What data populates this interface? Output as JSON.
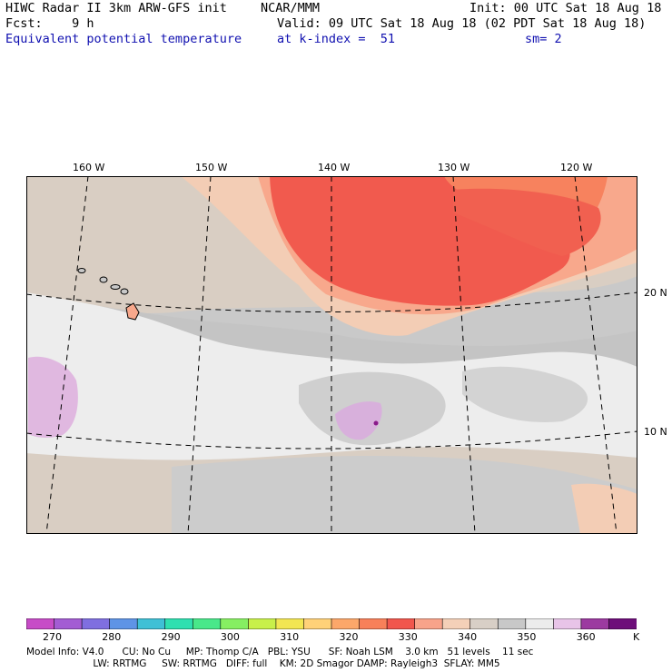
{
  "header": {
    "line1_left": "HIWC Radar II 3km ARW-GFS init",
    "line1_mid": "NCAR/MMM",
    "line1_right": "Init: 00 UTC Sat 18 Aug 18",
    "line2_left": "Fcst:    9 h",
    "line2_right": "Valid: 09 UTC Sat 18 Aug 18 (02 PDT Sat 18 Aug 18)",
    "line3_left": "Equivalent potential temperature",
    "line3_mid": "at k-index =  51",
    "line3_right": "sm= 2"
  },
  "map": {
    "lon_labels": [
      "160 W",
      "150 W",
      "140 W",
      "130 W",
      "120 W"
    ],
    "lat_labels": [
      "20 N",
      "10 N"
    ]
  },
  "colorbar": {
    "labels": [
      "270",
      "280",
      "290",
      "300",
      "310",
      "320",
      "330",
      "340",
      "350",
      "360"
    ],
    "unit": "K",
    "colors": [
      "#c74cc7",
      "#a35cd3",
      "#7f6fe0",
      "#5e94e6",
      "#3fc0d6",
      "#2fe0b0",
      "#49e88a",
      "#86ef62",
      "#c8f04a",
      "#f2e652",
      "#ffd178",
      "#fca76a",
      "#f8805a",
      "#f1564d",
      "#f8a38a",
      "#f4d0b8",
      "#d8cfc6",
      "#c8c8c8",
      "#ececec",
      "#e8c4e8",
      "#9c3aa0",
      "#6e0e7a"
    ]
  },
  "footer": {
    "line1": "Model Info: V4.0      CU: No Cu     MP: Thomp C/A   PBL: YSU      SF: Noah LSM    3.0 km   51 levels    11 sec",
    "line2": "                      LW: RRTMG     SW: RRTMG   DIFF: full    KM: 2D Smagor DAMP: Rayleigh3  SFLAY: MM5"
  }
}
